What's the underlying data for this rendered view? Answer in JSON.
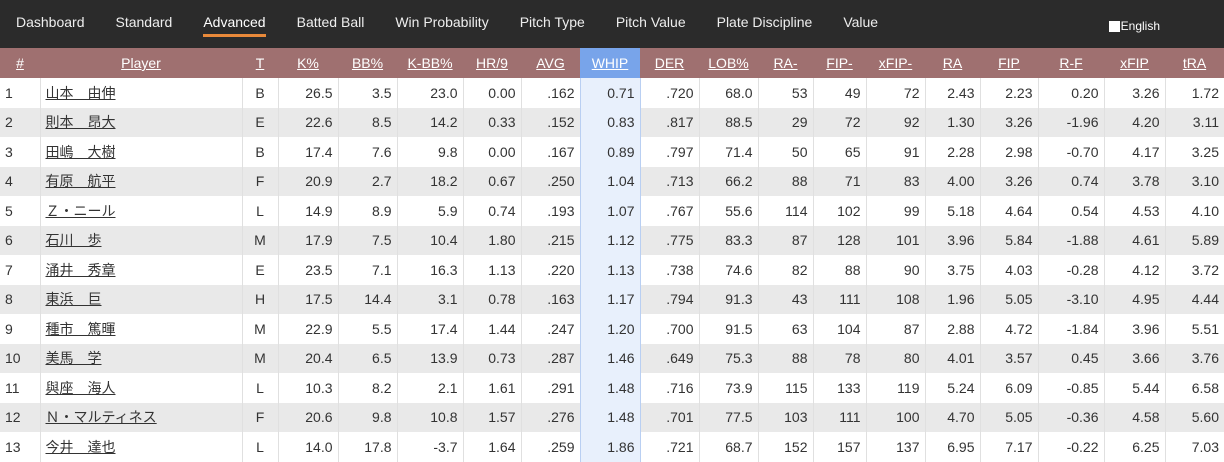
{
  "nav": {
    "tabs": [
      "Dashboard",
      "Standard",
      "Advanced",
      "Batted Ball",
      "Win Probability",
      "Pitch Type",
      "Pitch Value",
      "Plate Discipline",
      "Value"
    ],
    "active": 2,
    "language": "English"
  },
  "table": {
    "columns": [
      "#",
      "Player",
      "T",
      "K%",
      "BB%",
      "K-BB%",
      "HR/9",
      "AVG",
      "WHIP",
      "DER",
      "LOB%",
      "RA-",
      "FIP-",
      "xFIP-",
      "RA",
      "FIP",
      "R-F",
      "xFIP",
      "tRA"
    ],
    "highlight_column": 8,
    "rows": [
      [
        "1",
        "山本　由伸",
        "B",
        "26.5",
        "3.5",
        "23.0",
        "0.00",
        ".162",
        "0.71",
        ".720",
        "68.0",
        "53",
        "49",
        "72",
        "2.43",
        "2.23",
        "0.20",
        "3.26",
        "1.72"
      ],
      [
        "2",
        "則本　昂大",
        "E",
        "22.6",
        "8.5",
        "14.2",
        "0.33",
        ".152",
        "0.83",
        ".817",
        "88.5",
        "29",
        "72",
        "92",
        "1.30",
        "3.26",
        "-1.96",
        "4.20",
        "3.11"
      ],
      [
        "3",
        "田嶋　大樹",
        "B",
        "17.4",
        "7.6",
        "9.8",
        "0.00",
        ".167",
        "0.89",
        ".797",
        "71.4",
        "50",
        "65",
        "91",
        "2.28",
        "2.98",
        "-0.70",
        "4.17",
        "3.25"
      ],
      [
        "4",
        "有原　航平",
        "F",
        "20.9",
        "2.7",
        "18.2",
        "0.67",
        ".250",
        "1.04",
        ".713",
        "66.2",
        "88",
        "71",
        "83",
        "4.00",
        "3.26",
        "0.74",
        "3.78",
        "3.10"
      ],
      [
        "5",
        "Ｚ・ニール",
        "L",
        "14.9",
        "8.9",
        "5.9",
        "0.74",
        ".193",
        "1.07",
        ".767",
        "55.6",
        "114",
        "102",
        "99",
        "5.18",
        "4.64",
        "0.54",
        "4.53",
        "4.10"
      ],
      [
        "6",
        "石川　歩",
        "M",
        "17.9",
        "7.5",
        "10.4",
        "1.80",
        ".215",
        "1.12",
        ".775",
        "83.3",
        "87",
        "128",
        "101",
        "3.96",
        "5.84",
        "-1.88",
        "4.61",
        "5.89"
      ],
      [
        "7",
        "涌井　秀章",
        "E",
        "23.5",
        "7.1",
        "16.3",
        "1.13",
        ".220",
        "1.13",
        ".738",
        "74.6",
        "82",
        "88",
        "90",
        "3.75",
        "4.03",
        "-0.28",
        "4.12",
        "3.72"
      ],
      [
        "8",
        "東浜　巨",
        "H",
        "17.5",
        "14.4",
        "3.1",
        "0.78",
        ".163",
        "1.17",
        ".794",
        "91.3",
        "43",
        "111",
        "108",
        "1.96",
        "5.05",
        "-3.10",
        "4.95",
        "4.44"
      ],
      [
        "9",
        "種市　篤暉",
        "M",
        "22.9",
        "5.5",
        "17.4",
        "1.44",
        ".247",
        "1.20",
        ".700",
        "91.5",
        "63",
        "104",
        "87",
        "2.88",
        "4.72",
        "-1.84",
        "3.96",
        "5.51"
      ],
      [
        "10",
        "美馬　学",
        "M",
        "20.4",
        "6.5",
        "13.9",
        "0.73",
        ".287",
        "1.46",
        ".649",
        "75.3",
        "88",
        "78",
        "80",
        "4.01",
        "3.57",
        "0.45",
        "3.66",
        "3.76"
      ],
      [
        "11",
        "與座　海人",
        "L",
        "10.3",
        "8.2",
        "2.1",
        "1.61",
        ".291",
        "1.48",
        ".716",
        "73.9",
        "115",
        "133",
        "119",
        "5.24",
        "6.09",
        "-0.85",
        "5.44",
        "6.58"
      ],
      [
        "12",
        "Ｎ・マルティネス",
        "F",
        "20.6",
        "9.8",
        "10.8",
        "1.57",
        ".276",
        "1.48",
        ".701",
        "77.5",
        "103",
        "111",
        "100",
        "4.70",
        "5.05",
        "-0.36",
        "4.58",
        "5.60"
      ],
      [
        "13",
        "今井　達也",
        "L",
        "14.0",
        "17.8",
        "-3.7",
        "1.64",
        ".259",
        "1.86",
        ".721",
        "68.7",
        "152",
        "157",
        "137",
        "6.95",
        "7.17",
        "-0.22",
        "6.25",
        "7.03"
      ]
    ]
  }
}
